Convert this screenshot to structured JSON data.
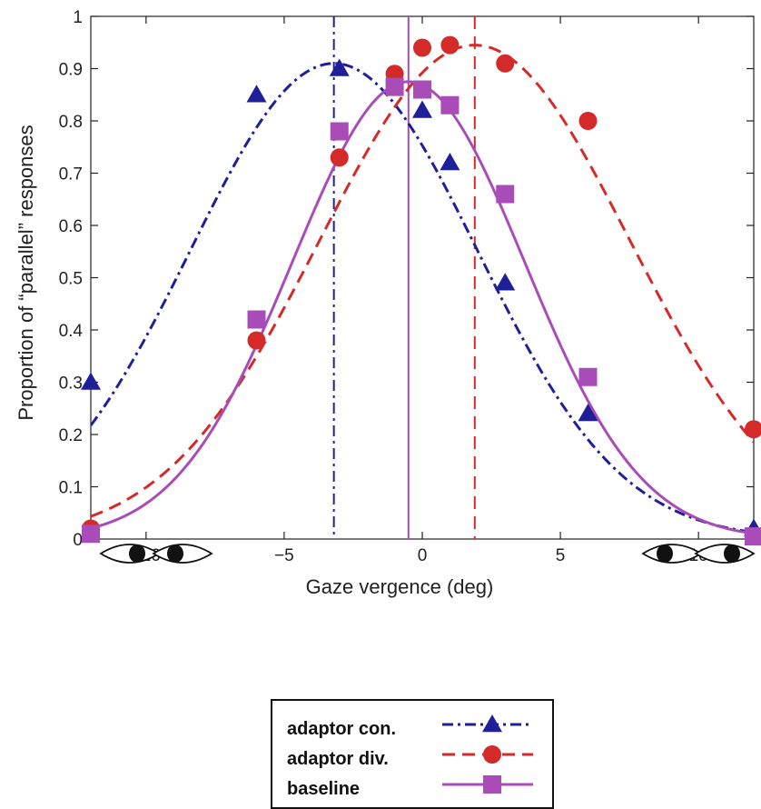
{
  "chart_data": {
    "type": "line",
    "xlabel": "Gaze vergence (deg)",
    "ylabel": "Proportion of “parallel” responses",
    "xlim": [
      -12,
      12
    ],
    "ylim": [
      0,
      1
    ],
    "xticks": [
      -10,
      -5,
      0,
      5,
      10
    ],
    "xtick_labels": [
      "−10",
      "−5",
      "0",
      "5",
      "10"
    ],
    "yticks": [
      0,
      0.1,
      0.2,
      0.3,
      0.4,
      0.5,
      0.6,
      0.7,
      0.8,
      0.9,
      1
    ],
    "ytick_labels": [
      "0",
      "0.1",
      "0.2",
      "0.3",
      "0.4",
      "0.5",
      "0.6",
      "0.7",
      "0.8",
      "0.9",
      "1"
    ],
    "grid": false,
    "legend_position": "bottom-center",
    "series": [
      {
        "name": "adaptor con.",
        "color": "#1f1f99",
        "marker": "triangle",
        "line_style": "dash-dot",
        "x": [
          -12,
          -6,
          -3,
          0,
          1,
          3,
          6,
          12
        ],
        "y": [
          0.3,
          0.85,
          0.9,
          0.82,
          0.72,
          0.49,
          0.24,
          0.02
        ],
        "fit_mean": -3.2,
        "fit_amplitude": 0.91,
        "fit_sigma": 5.2
      },
      {
        "name": "adaptor div.",
        "color": "#d42a2a",
        "marker": "circle",
        "line_style": "dashed",
        "x": [
          -12,
          -6,
          -3,
          -1,
          0,
          1,
          3,
          6,
          12
        ],
        "y": [
          0.02,
          0.38,
          0.73,
          0.89,
          0.94,
          0.945,
          0.91,
          0.8,
          0.21
        ],
        "fit_mean": 1.9,
        "fit_amplitude": 0.945,
        "fit_sigma": 5.6
      },
      {
        "name": "baseline",
        "color": "#a84db8",
        "marker": "square",
        "line_style": "solid",
        "x": [
          -12,
          -6,
          -3,
          -1,
          0,
          1,
          3,
          6,
          12
        ],
        "y": [
          0.01,
          0.42,
          0.78,
          0.865,
          0.86,
          0.83,
          0.66,
          0.31,
          0.005
        ],
        "fit_mean": -0.5,
        "fit_amplitude": 0.875,
        "fit_sigma": 4.2
      }
    ],
    "vertical_lines": [
      {
        "series": "adaptor con.",
        "x": -3.2
      },
      {
        "series": "baseline",
        "x": -0.5
      },
      {
        "series": "adaptor div.",
        "x": 1.9
      }
    ]
  }
}
